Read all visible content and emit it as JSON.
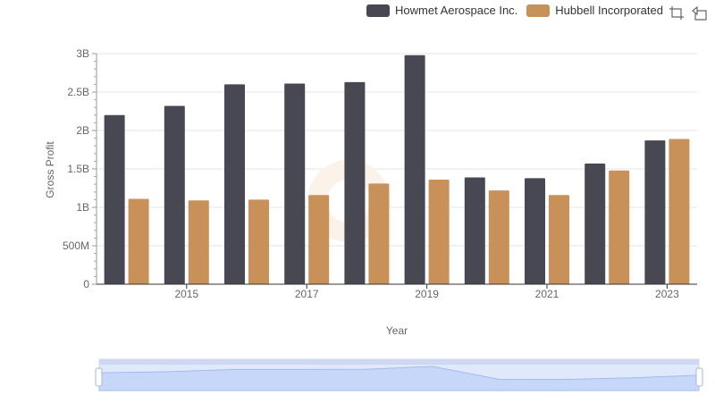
{
  "legend": {
    "items": [
      {
        "label": "Howmet Aerospace Inc.",
        "color": "#474852"
      },
      {
        "label": "Hubbell Incorporated",
        "color": "#c8915a"
      }
    ]
  },
  "toolbar": {
    "icons": [
      "crop-zoom-icon",
      "restore-icon"
    ]
  },
  "chart_data": {
    "type": "bar",
    "xlabel": "Year",
    "ylabel": "Gross Profit",
    "ylim": [
      0,
      3000000000
    ],
    "yticks": [
      0,
      500000000,
      1000000000,
      1500000000,
      2000000000,
      2500000000,
      3000000000
    ],
    "ytick_labels": [
      "0",
      "500M",
      "1B",
      "1.5B",
      "2B",
      "2.5B",
      "3B"
    ],
    "categories": [
      "2014",
      "2015",
      "2016",
      "2017",
      "2018",
      "2019",
      "2020",
      "2021",
      "2022",
      "2023"
    ],
    "xtick_labels": [
      "2015",
      "2017",
      "2019",
      "2021",
      "2023"
    ],
    "grid": true,
    "legend_position": "top-right",
    "series": [
      {
        "name": "Howmet Aerospace Inc.",
        "color": "#474852",
        "values": [
          2200000000,
          2320000000,
          2600000000,
          2610000000,
          2630000000,
          2980000000,
          1390000000,
          1380000000,
          1570000000,
          1870000000
        ]
      },
      {
        "name": "Hubbell Incorporated",
        "color": "#c8915a",
        "values": [
          1110000000,
          1090000000,
          1100000000,
          1160000000,
          1310000000,
          1360000000,
          1220000000,
          1160000000,
          1480000000,
          1890000000
        ]
      }
    ],
    "datazoom": {
      "start": 0,
      "end": 1
    }
  }
}
